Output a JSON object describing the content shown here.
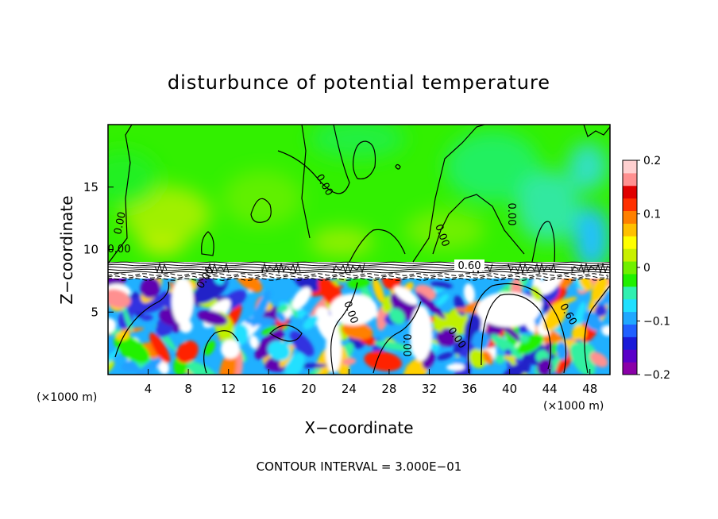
{
  "chart_data": {
    "type": "heatmap",
    "title": "disturbunce of potential temperature",
    "xlabel": "X−coordinate",
    "ylabel": "Z−coordinate",
    "x_unit_label": "(×1000 m)",
    "x_unit_label_right": "(×1000 m)",
    "x_ticks": [
      4,
      8,
      12,
      16,
      20,
      24,
      28,
      32,
      36,
      40,
      44,
      48
    ],
    "y_ticks": [
      5,
      10,
      15
    ],
    "xlim": [
      0,
      50
    ],
    "ylim": [
      0,
      20
    ],
    "colorbar": {
      "ticks": [
        "0.2",
        "0.1",
        "0",
        "−0.1",
        "−0.2"
      ],
      "tick_values": [
        0.2,
        0.1,
        0,
        -0.1,
        -0.2
      ],
      "range": [
        -0.2,
        0.2
      ],
      "colors": [
        "#8a00a8",
        "#5a00c8",
        "#1a1ad8",
        "#2060ff",
        "#20a8ff",
        "#20e0ff",
        "#30f0b0",
        "#20f000",
        "#70f000",
        "#c8f000",
        "#ffff00",
        "#ffc000",
        "#ff8000",
        "#ff3000",
        "#e00000",
        "#ff9090",
        "#ffd0d0"
      ]
    },
    "layers": {
      "upper_region_value": 0.0,
      "inversion_layer_z": [
        8.5,
        9.2
      ],
      "lower_region_turbulent_below_z": 8.5
    },
    "contour_labels": [
      "0.00",
      "0.00",
      "0.00",
      "0.00",
      "0.00",
      "0.00",
      "0.00",
      "0.60",
      "0.00",
      "0.00",
      "0.00"
    ],
    "footer": "CONTOUR INTERVAL = 3.000E−01"
  }
}
